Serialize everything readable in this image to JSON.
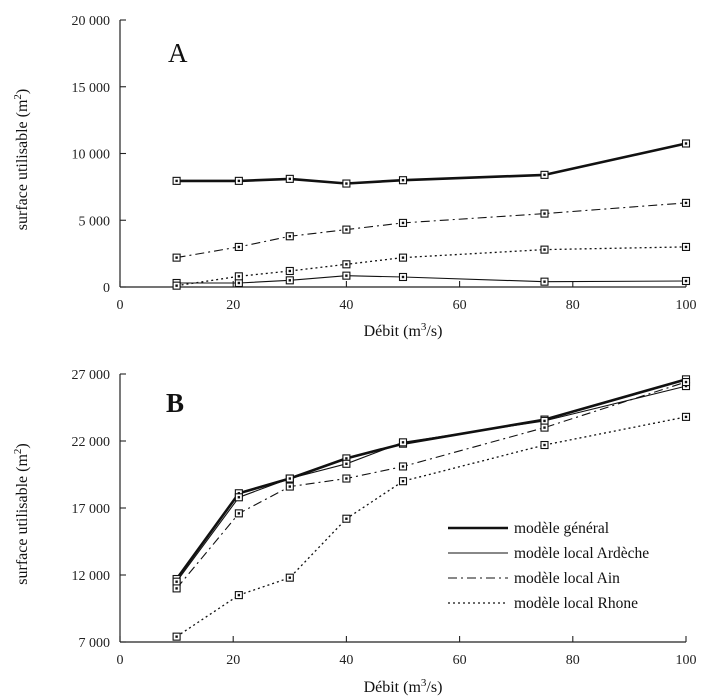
{
  "chart_data": [
    {
      "type": "line",
      "panel_label": "A",
      "xlabel": "Débit (m³/s)",
      "ylabel": "surface utilisable (m²)",
      "xlim": [
        0,
        100
      ],
      "ylim": [
        0,
        20000
      ],
      "x_ticks": [
        0,
        20,
        40,
        60,
        80,
        100
      ],
      "y_ticks": [
        0,
        5000,
        10000,
        15000,
        20000
      ],
      "x_tick_labels": [
        "0",
        "20",
        "40",
        "60",
        "80",
        "100"
      ],
      "y_tick_labels": [
        "0",
        "5 000",
        "10 000",
        "15 000",
        "20 000"
      ],
      "grid": false,
      "series": [
        {
          "name": "modèle général",
          "style": "thick",
          "x": [
            10,
            21,
            30,
            40,
            50,
            75,
            100
          ],
          "y": [
            7950,
            7950,
            8100,
            7750,
            8000,
            8400,
            10750
          ]
        },
        {
          "name": "modèle local Ardèche",
          "style": "thin",
          "x": [
            10,
            21,
            30,
            40,
            50,
            75,
            100
          ],
          "y": [
            300,
            300,
            500,
            850,
            750,
            400,
            450
          ]
        },
        {
          "name": "modèle local Ain",
          "style": "dashdot",
          "x": [
            10,
            21,
            30,
            40,
            50,
            75,
            100
          ],
          "y": [
            2200,
            3000,
            3800,
            4300,
            4800,
            5500,
            6300
          ]
        },
        {
          "name": "modèle local Rhone",
          "style": "dotted",
          "x": [
            10,
            21,
            30,
            40,
            50,
            75,
            100
          ],
          "y": [
            100,
            800,
            1200,
            1700,
            2200,
            2800,
            3000
          ]
        }
      ]
    },
    {
      "type": "line",
      "panel_label": "B",
      "xlabel": "Débit (m³/s)",
      "ylabel": "surface utilisable (m²)",
      "xlim": [
        0,
        100
      ],
      "ylim": [
        7000,
        27000
      ],
      "x_ticks": [
        0,
        20,
        40,
        60,
        80,
        100
      ],
      "y_ticks": [
        7000,
        12000,
        17000,
        22000,
        27000
      ],
      "x_tick_labels": [
        "0",
        "20",
        "40",
        "60",
        "80",
        "100"
      ],
      "y_tick_labels": [
        "7 000",
        "12 000",
        "17 000",
        "22 000",
        "27 000"
      ],
      "grid": false,
      "legend_position": "bottom-right",
      "series": [
        {
          "name": "modèle général",
          "style": "thick",
          "x": [
            10,
            21,
            30,
            40,
            50,
            75,
            100
          ],
          "y": [
            11700,
            18100,
            19200,
            20700,
            21800,
            23600,
            26600
          ]
        },
        {
          "name": "modèle local Ardèche",
          "style": "thin",
          "x": [
            10,
            21,
            30,
            40,
            50,
            75,
            100
          ],
          "y": [
            11500,
            17800,
            19200,
            20300,
            21900,
            23500,
            26100
          ]
        },
        {
          "name": "modèle local Ain",
          "style": "dashdot",
          "x": [
            10,
            21,
            30,
            40,
            50,
            75,
            100
          ],
          "y": [
            11000,
            16600,
            18600,
            19200,
            20100,
            23000,
            26400
          ]
        },
        {
          "name": "modèle local Rhone",
          "style": "dotted",
          "x": [
            10,
            21,
            30,
            40,
            50,
            75,
            100
          ],
          "y": [
            7400,
            10500,
            11800,
            16200,
            19000,
            21700,
            23800
          ]
        }
      ]
    }
  ],
  "legend": {
    "entries": [
      "modèle général",
      "modèle local Ardèche",
      "modèle local Ain",
      "modèle local Rhone"
    ]
  },
  "ylabel_parts": {
    "main": "surface utilisable (m",
    "sup": "2",
    "end": ")"
  },
  "xlabel_parts": {
    "main": "Débit (m",
    "sup": "3",
    "end": "/s)"
  }
}
